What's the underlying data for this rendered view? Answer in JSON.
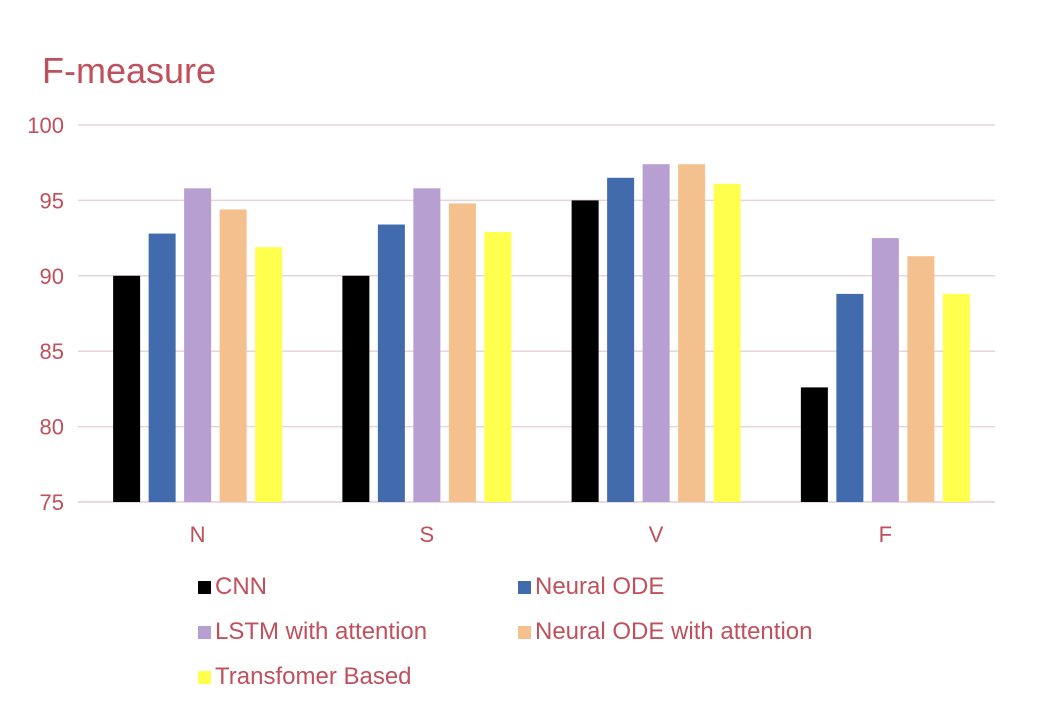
{
  "chart_data": {
    "type": "bar",
    "title": "F-measure",
    "xlabel": "",
    "ylabel": "",
    "categories": [
      "N",
      "S",
      "V",
      "F"
    ],
    "ylim": [
      75,
      100
    ],
    "yticks": [
      75,
      80,
      85,
      90,
      95,
      100
    ],
    "grid": true,
    "legend_position": "bottom",
    "series": [
      {
        "name": "CNN",
        "color": "#000000",
        "values": [
          90.0,
          90.0,
          95.0,
          82.6
        ]
      },
      {
        "name": "Neural ODE",
        "color": "#416bac",
        "values": [
          92.8,
          93.4,
          96.5,
          88.8
        ]
      },
      {
        "name": "LSTM with attention",
        "color": "#b79fd2",
        "values": [
          95.8,
          95.8,
          97.4,
          92.5
        ]
      },
      {
        "name": "Neural ODE with attention",
        "color": "#f4c18e",
        "values": [
          94.4,
          94.8,
          97.4,
          91.3
        ]
      },
      {
        "name": "Transfomer Based",
        "color": "#ffff4d",
        "values": [
          91.9,
          92.9,
          96.1,
          88.8
        ]
      }
    ]
  },
  "colors": {
    "text": "#c0505c",
    "gridline": "#e8d4dc"
  }
}
